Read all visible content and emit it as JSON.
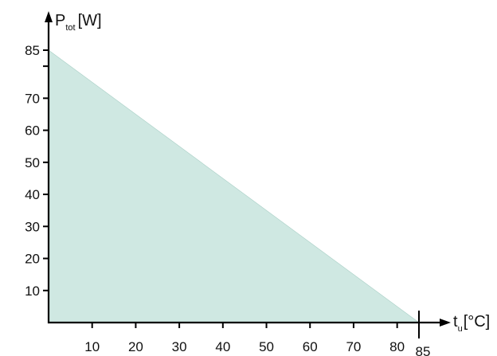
{
  "chart_data": {
    "type": "area",
    "title": "",
    "fill_color": "#cfe8e2",
    "axis_color": "#000000",
    "grid": false,
    "x_axis": {
      "label": {
        "main": "t",
        "sub": "u",
        "unit": "[°C]"
      },
      "ticks": [
        10,
        20,
        30,
        40,
        50,
        60,
        70,
        80
      ],
      "end_tick": 85,
      "range": [
        0,
        85
      ]
    },
    "y_axis": {
      "label": {
        "main": "P",
        "sub": "tot",
        "unit": "[W]"
      },
      "ticks": [
        10,
        20,
        30,
        40,
        50,
        60,
        70
      ],
      "unlabeled_ticks": [
        80
      ],
      "end_tick": 85,
      "range": [
        0,
        85
      ]
    },
    "series": [
      {
        "x": [
          0,
          85
        ],
        "y": [
          85,
          0
        ]
      }
    ]
  }
}
